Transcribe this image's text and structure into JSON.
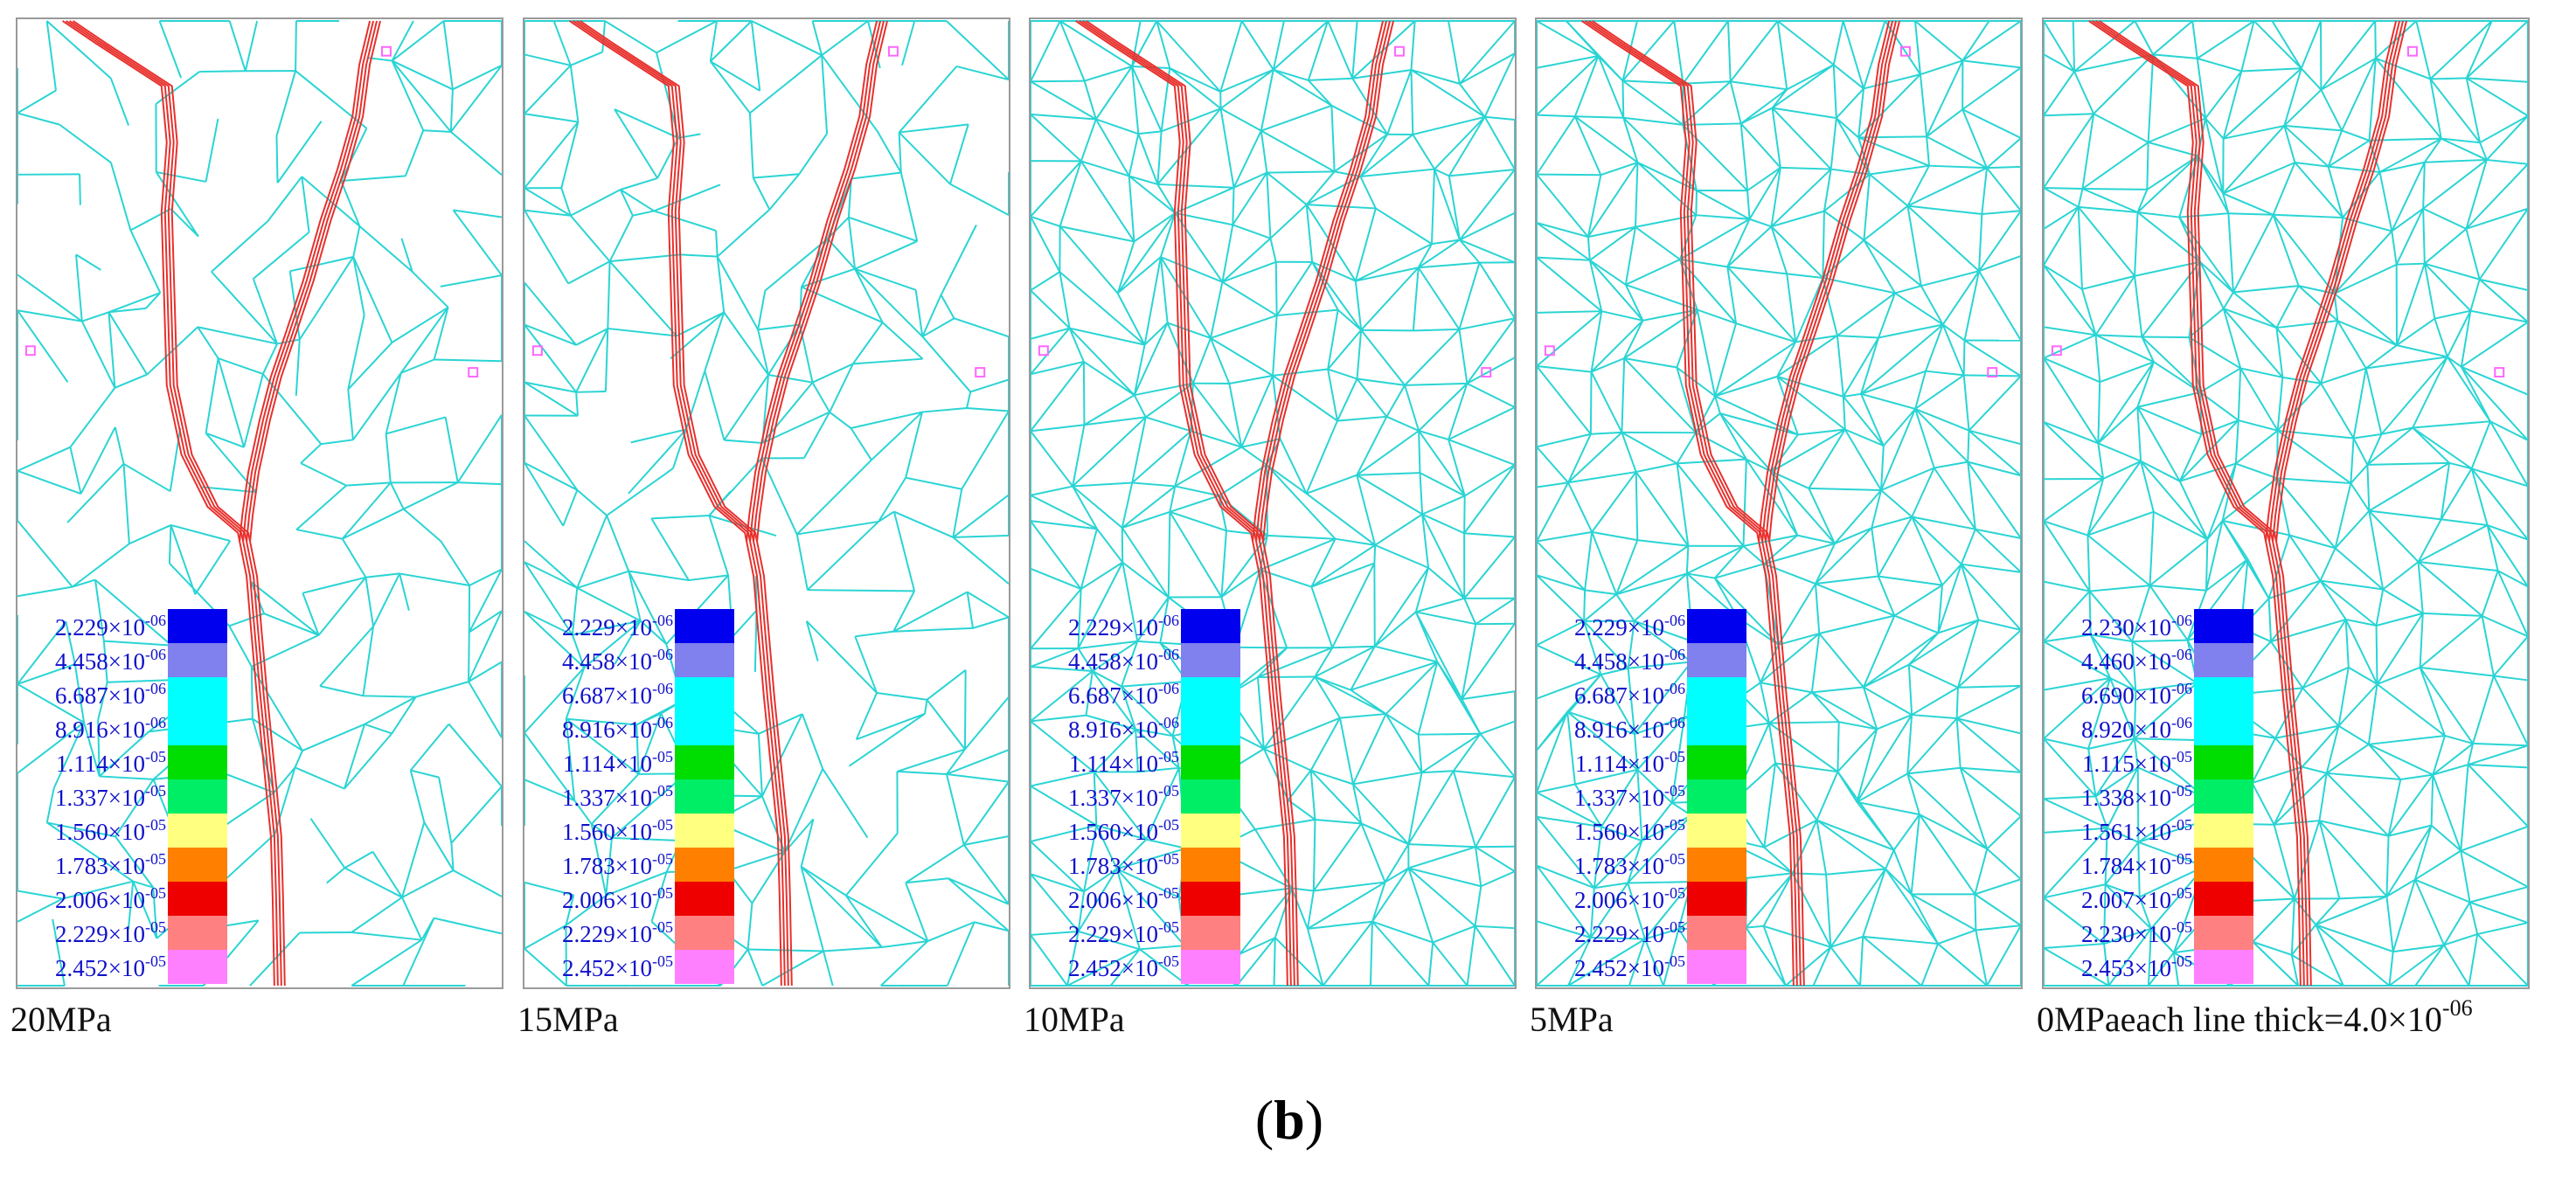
{
  "panels": [
    {
      "caption": "20MPa",
      "density": 0.45,
      "legend": [
        {
          "mant": "2.229",
          "exp": "-06"
        },
        {
          "mant": "4.458",
          "exp": "-06"
        },
        {
          "mant": "6.687",
          "exp": "-06"
        },
        {
          "mant": "8.916",
          "exp": "-06"
        },
        {
          "mant": "1.114",
          "exp": "-05"
        },
        {
          "mant": "1.337",
          "exp": "-05"
        },
        {
          "mant": "1.560",
          "exp": "-05"
        },
        {
          "mant": "1.783",
          "exp": "-05"
        },
        {
          "mant": "2.006",
          "exp": "-05"
        },
        {
          "mant": "2.229",
          "exp": "-05"
        },
        {
          "mant": "2.452",
          "exp": "-05"
        }
      ]
    },
    {
      "caption": "15MPa",
      "density": 0.55,
      "legend": [
        {
          "mant": "2.229",
          "exp": "-06"
        },
        {
          "mant": "4.458",
          "exp": "-06"
        },
        {
          "mant": "6.687",
          "exp": "-06"
        },
        {
          "mant": "8.916",
          "exp": "-06"
        },
        {
          "mant": "1.114",
          "exp": "-05"
        },
        {
          "mant": "1.337",
          "exp": "-05"
        },
        {
          "mant": "1.560",
          "exp": "-05"
        },
        {
          "mant": "1.783",
          "exp": "-05"
        },
        {
          "mant": "2.006",
          "exp": "-05"
        },
        {
          "mant": "2.229",
          "exp": "-05"
        },
        {
          "mant": "2.452",
          "exp": "-05"
        }
      ]
    },
    {
      "caption": "10MPa",
      "density": 0.95,
      "legend": [
        {
          "mant": "2.229",
          "exp": "-06"
        },
        {
          "mant": "4.458",
          "exp": "-06"
        },
        {
          "mant": "6.687",
          "exp": "-06"
        },
        {
          "mant": "8.916",
          "exp": "-06"
        },
        {
          "mant": "1.114",
          "exp": "-05"
        },
        {
          "mant": "1.337",
          "exp": "-05"
        },
        {
          "mant": "1.560",
          "exp": "-05"
        },
        {
          "mant": "1.783",
          "exp": "-05"
        },
        {
          "mant": "2.006",
          "exp": "-05"
        },
        {
          "mant": "2.229",
          "exp": "-05"
        },
        {
          "mant": "2.452",
          "exp": "-05"
        }
      ]
    },
    {
      "caption": "5MPa",
      "density": 1.0,
      "legend": [
        {
          "mant": "2.229",
          "exp": "-06"
        },
        {
          "mant": "4.458",
          "exp": "-06"
        },
        {
          "mant": "6.687",
          "exp": "-06"
        },
        {
          "mant": "8.916",
          "exp": "-06"
        },
        {
          "mant": "1.114",
          "exp": "-05"
        },
        {
          "mant": "1.337",
          "exp": "-05"
        },
        {
          "mant": "1.560",
          "exp": "-05"
        },
        {
          "mant": "1.783",
          "exp": "-05"
        },
        {
          "mant": "2.006",
          "exp": "-05"
        },
        {
          "mant": "2.229",
          "exp": "-05"
        },
        {
          "mant": "2.452",
          "exp": "-05"
        }
      ]
    },
    {
      "caption": "0MPa",
      "density": 1.0,
      "legend": [
        {
          "mant": "2.230",
          "exp": "-06"
        },
        {
          "mant": "4.460",
          "exp": "-06"
        },
        {
          "mant": "6.690",
          "exp": "-06"
        },
        {
          "mant": "8.920",
          "exp": "-06"
        },
        {
          "mant": "1.115",
          "exp": "-05"
        },
        {
          "mant": "1.338",
          "exp": "-05"
        },
        {
          "mant": "1.561",
          "exp": "-05"
        },
        {
          "mant": "1.784",
          "exp": "-05"
        },
        {
          "mant": "2.007",
          "exp": "-05"
        },
        {
          "mant": "2.230",
          "exp": "-05"
        },
        {
          "mant": "2.453",
          "exp": "-05"
        }
      ]
    }
  ],
  "legend_colors": [
    "#0000ee",
    "#8080ee",
    "#00ffff",
    "#00ffff",
    "#00dd00",
    "#00ee66",
    "#ffff80",
    "#ff8000",
    "#ee0000",
    "#ff8080",
    "#ff80ff"
  ],
  "colors": {
    "mesh": "#2ad4d4",
    "crack": "#e8302c",
    "legend_text": "#1010cc"
  },
  "note": {
    "text": "each line thick=4.0×10",
    "exp": "-06"
  },
  "figure_label": "(b)",
  "times_sign": "×10"
}
